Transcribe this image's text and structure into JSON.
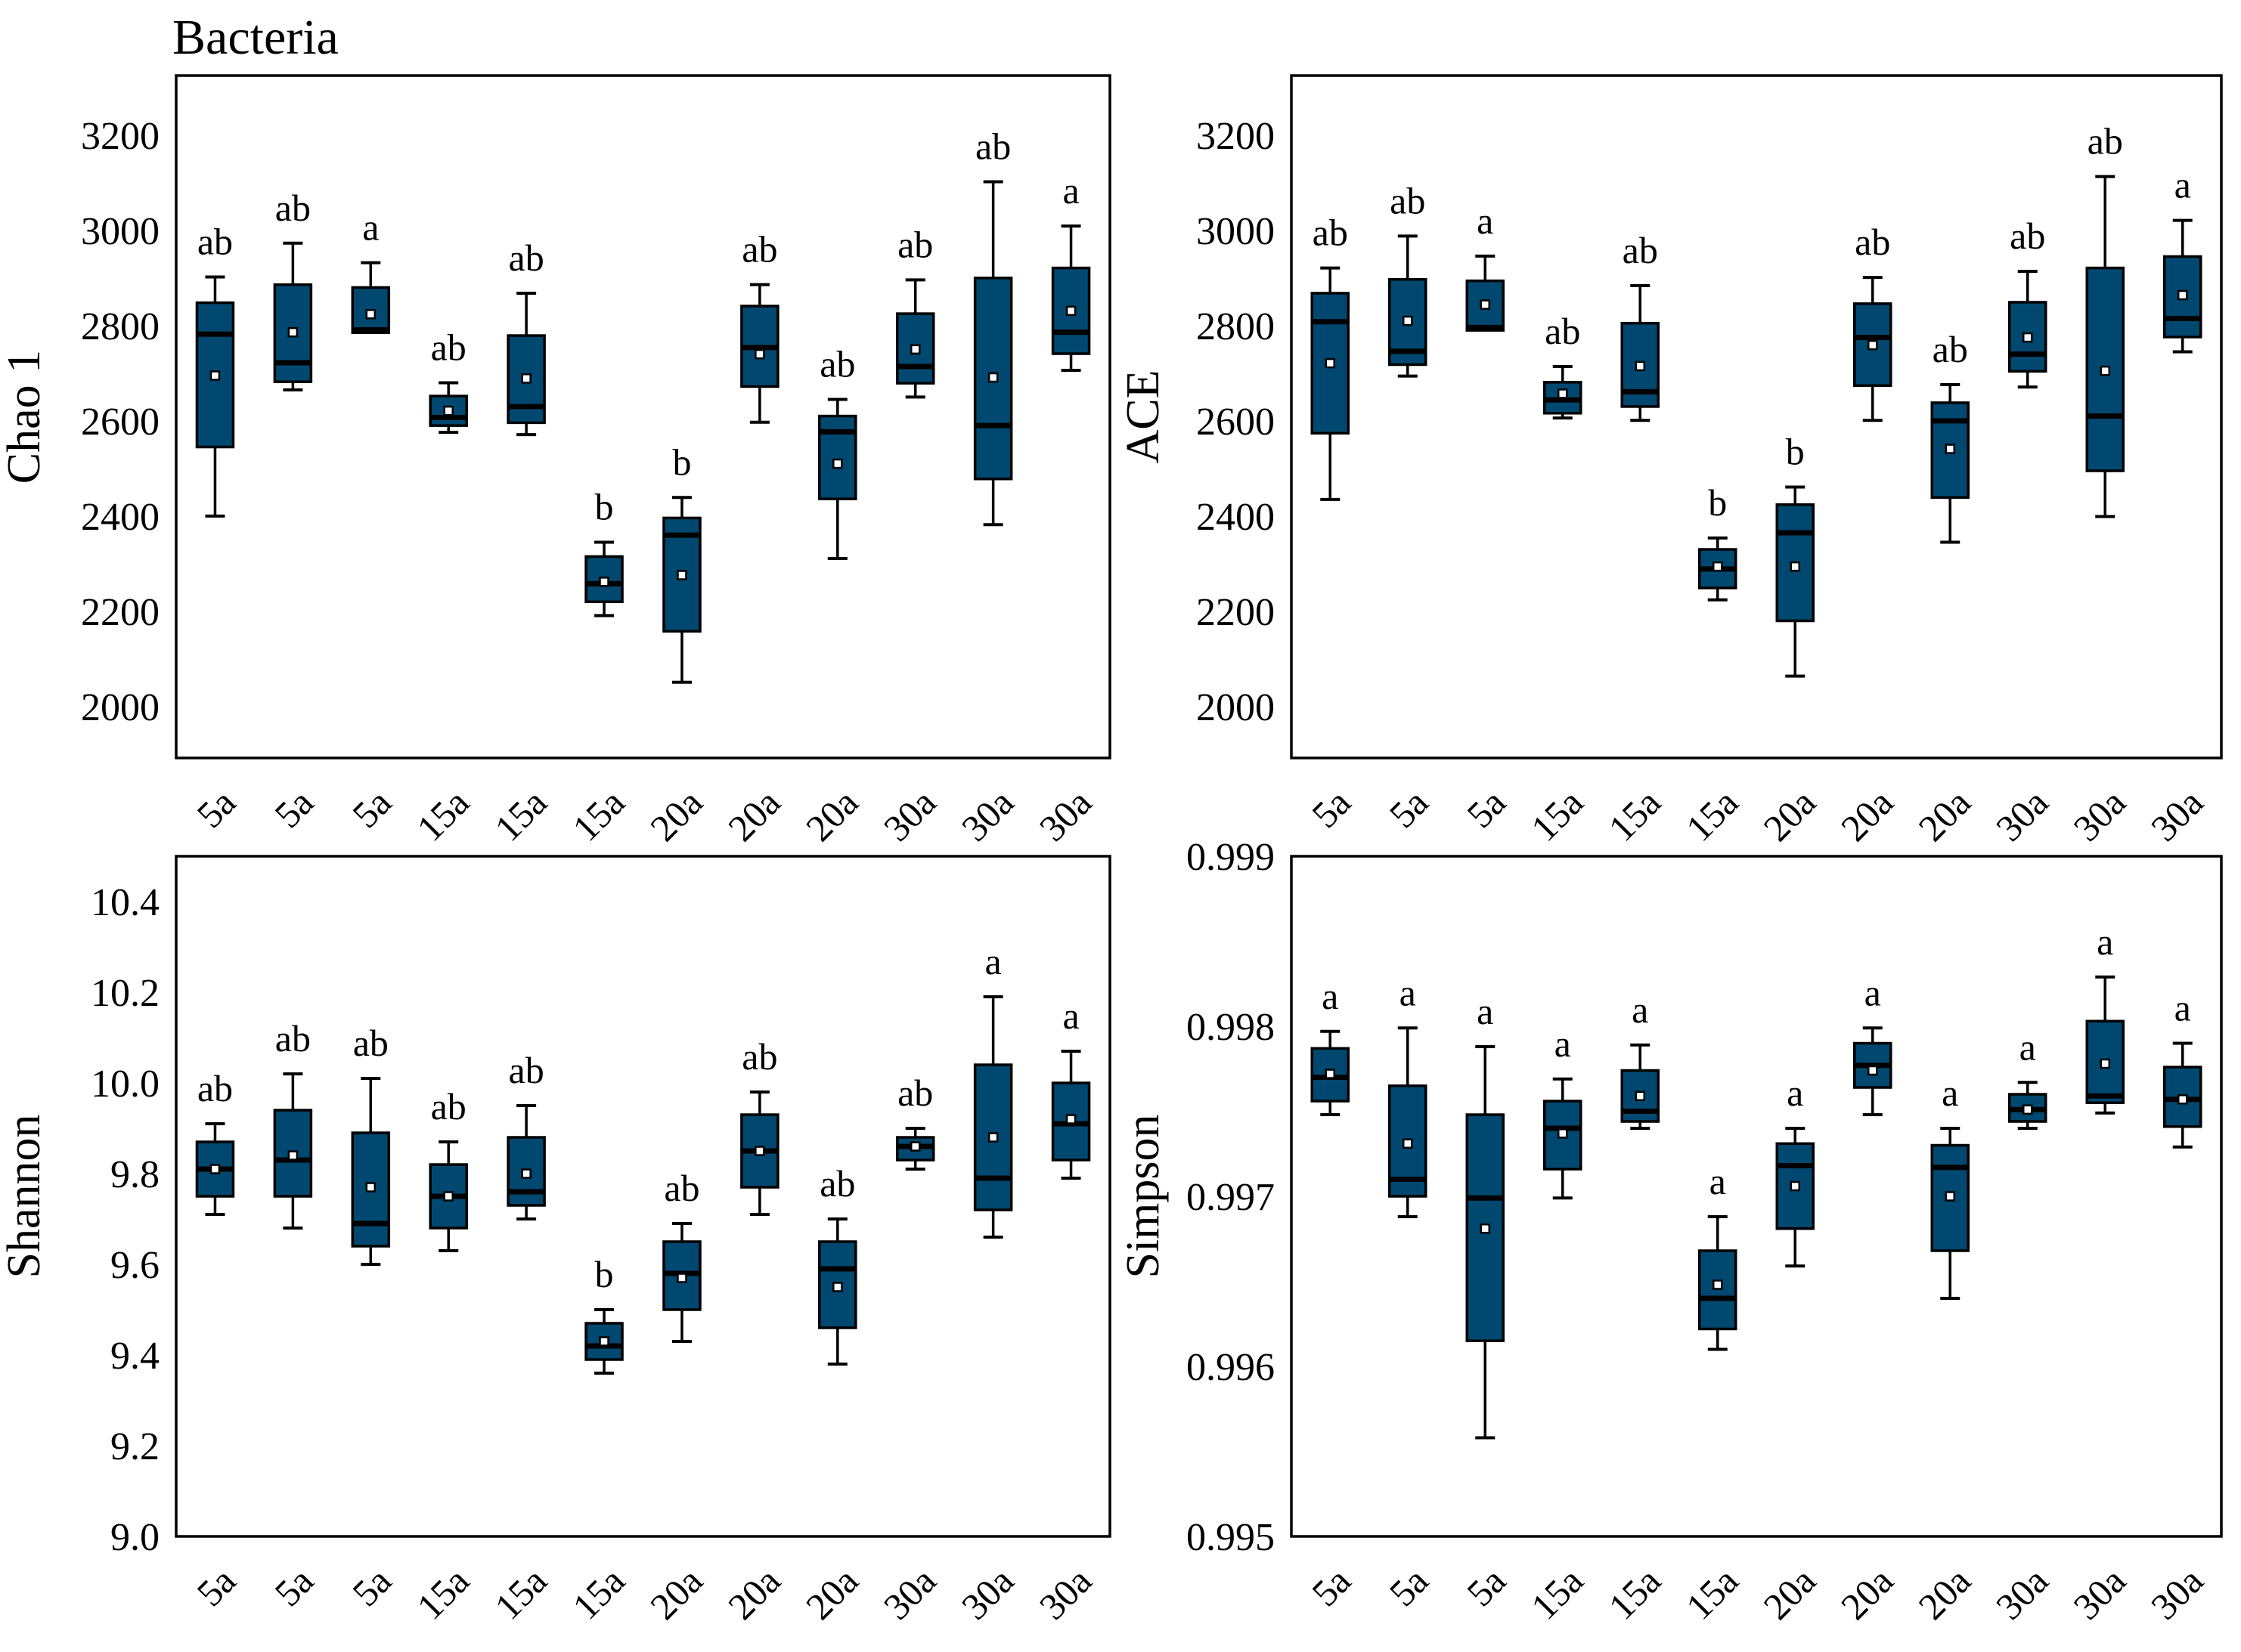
{
  "figure": {
    "title": "Bacteria",
    "box_fill": "#004870",
    "line_color": "#000000",
    "background": "#ffffff"
  },
  "categories": [
    "5a",
    "5a",
    "5a",
    "15a",
    "15a",
    "15a",
    "20a",
    "20a",
    "20a",
    "30a",
    "30a",
    "30a"
  ],
  "chart_data": [
    {
      "type": "box",
      "ylabel": "Chao 1",
      "ylim": [
        1892,
        3325
      ],
      "yticks": [
        {
          "v": 2000,
          "label": "2000"
        },
        {
          "v": 2200,
          "label": "2200"
        },
        {
          "v": 2400,
          "label": "2400"
        },
        {
          "v": 2600,
          "label": "2600"
        },
        {
          "v": 2800,
          "label": "2800"
        },
        {
          "v": 3000,
          "label": "3000"
        },
        {
          "v": 3200,
          "label": "3200"
        }
      ],
      "boxes": [
        {
          "category": "5a",
          "letter": "ab",
          "low": 2400,
          "q1": 2545,
          "median": 2782,
          "q3": 2848,
          "high": 2902,
          "mean": 2695
        },
        {
          "category": "5a",
          "letter": "ab",
          "low": 2665,
          "q1": 2682,
          "median": 2722,
          "q3": 2886,
          "high": 2973,
          "mean": 2786
        },
        {
          "category": "5a",
          "letter": "a",
          "low": 2785,
          "q1": 2785,
          "median": 2791,
          "q3": 2880,
          "high": 2932,
          "mean": 2824
        },
        {
          "category": "15a",
          "letter": "ab",
          "low": 2576,
          "q1": 2590,
          "median": 2607,
          "q3": 2652,
          "high": 2680,
          "mean": 2621
        },
        {
          "category": "15a",
          "letter": "ab",
          "low": 2571,
          "q1": 2596,
          "median": 2630,
          "q3": 2779,
          "high": 2868,
          "mean": 2689
        },
        {
          "category": "15a",
          "letter": "b",
          "low": 2191,
          "q1": 2220,
          "median": 2258,
          "q3": 2315,
          "high": 2345,
          "mean": 2262
        },
        {
          "category": "20a",
          "letter": "b",
          "low": 2051,
          "q1": 2158,
          "median": 2360,
          "q3": 2396,
          "high": 2439,
          "mean": 2276
        },
        {
          "category": "20a",
          "letter": "ab",
          "low": 2597,
          "q1": 2672,
          "median": 2754,
          "q3": 2841,
          "high": 2886,
          "mean": 2740
        },
        {
          "category": "20a",
          "letter": "ab",
          "low": 2311,
          "q1": 2436,
          "median": 2577,
          "q3": 2610,
          "high": 2645,
          "mean": 2510
        },
        {
          "category": "30a",
          "letter": "ab",
          "low": 2650,
          "q1": 2679,
          "median": 2714,
          "q3": 2825,
          "high": 2896,
          "mean": 2750
        },
        {
          "category": "30a",
          "letter": "ab",
          "low": 2382,
          "q1": 2478,
          "median": 2590,
          "q3": 2900,
          "high": 3102,
          "mean": 2691
        },
        {
          "category": "30a",
          "letter": "a",
          "low": 2706,
          "q1": 2741,
          "median": 2786,
          "q3": 2921,
          "high": 3009,
          "mean": 2831
        }
      ]
    },
    {
      "type": "box",
      "ylabel": "ACE",
      "ylim": [
        1892,
        3325
      ],
      "yticks": [
        {
          "v": 2000,
          "label": "2000"
        },
        {
          "v": 2200,
          "label": "2200"
        },
        {
          "v": 2400,
          "label": "2400"
        },
        {
          "v": 2600,
          "label": "2600"
        },
        {
          "v": 2800,
          "label": "2800"
        },
        {
          "v": 3000,
          "label": "3000"
        },
        {
          "v": 3200,
          "label": "3200"
        }
      ],
      "boxes": [
        {
          "category": "5a",
          "letter": "ab",
          "low": 2435,
          "q1": 2574,
          "median": 2808,
          "q3": 2868,
          "high": 2921,
          "mean": 2721
        },
        {
          "category": "5a",
          "letter": "ab",
          "low": 2694,
          "q1": 2718,
          "median": 2746,
          "q3": 2897,
          "high": 2988,
          "mean": 2810
        },
        {
          "category": "5a",
          "letter": "a",
          "low": 2790,
          "q1": 2790,
          "median": 2796,
          "q3": 2894,
          "high": 2946,
          "mean": 2844
        },
        {
          "category": "15a",
          "letter": "ab",
          "low": 2606,
          "q1": 2616,
          "median": 2644,
          "q3": 2681,
          "high": 2714,
          "mean": 2657
        },
        {
          "category": "15a",
          "letter": "ab",
          "low": 2601,
          "q1": 2630,
          "median": 2661,
          "q3": 2805,
          "high": 2884,
          "mean": 2715
        },
        {
          "category": "15a",
          "letter": "b",
          "low": 2224,
          "q1": 2249,
          "median": 2289,
          "q3": 2330,
          "high": 2354,
          "mean": 2294
        },
        {
          "category": "20a",
          "letter": "b",
          "low": 2064,
          "q1": 2180,
          "median": 2365,
          "q3": 2424,
          "high": 2461,
          "mean": 2294
        },
        {
          "category": "20a",
          "letter": "ab",
          "low": 2601,
          "q1": 2674,
          "median": 2775,
          "q3": 2846,
          "high": 2901,
          "mean": 2759
        },
        {
          "category": "20a",
          "letter": "ab",
          "low": 2345,
          "q1": 2439,
          "median": 2600,
          "q3": 2638,
          "high": 2676,
          "mean": 2541
        },
        {
          "category": "30a",
          "letter": "ab",
          "low": 2671,
          "q1": 2704,
          "median": 2740,
          "q3": 2849,
          "high": 2914,
          "mean": 2775
        },
        {
          "category": "30a",
          "letter": "ab",
          "low": 2399,
          "q1": 2495,
          "median": 2610,
          "q3": 2921,
          "high": 3113,
          "mean": 2705
        },
        {
          "category": "30a",
          "letter": "a",
          "low": 2745,
          "q1": 2776,
          "median": 2815,
          "q3": 2945,
          "high": 3021,
          "mean": 2864
        }
      ]
    },
    {
      "type": "box",
      "ylabel": "Shannon",
      "ylim": [
        9.0,
        10.5
      ],
      "yticks": [
        {
          "v": 9.0,
          "label": "9.0"
        },
        {
          "v": 9.2,
          "label": "9.2"
        },
        {
          "v": 9.4,
          "label": "9.4"
        },
        {
          "v": 9.6,
          "label": "9.6"
        },
        {
          "v": 9.8,
          "label": "9.8"
        },
        {
          "v": 10.0,
          "label": "10.0"
        },
        {
          "v": 10.2,
          "label": "10.2"
        },
        {
          "v": 10.4,
          "label": "10.4"
        }
      ],
      "boxes": [
        {
          "category": "5a",
          "letter": "ab",
          "low": 9.71,
          "q1": 9.75,
          "median": 9.81,
          "q3": 9.87,
          "high": 9.91,
          "mean": 9.81
        },
        {
          "category": "5a",
          "letter": "ab",
          "low": 9.68,
          "q1": 9.75,
          "median": 9.83,
          "q3": 9.94,
          "high": 10.02,
          "mean": 9.84
        },
        {
          "category": "5a",
          "letter": "ab",
          "low": 9.6,
          "q1": 9.64,
          "median": 9.69,
          "q3": 9.89,
          "high": 10.01,
          "mean": 9.77
        },
        {
          "category": "15a",
          "letter": "ab",
          "low": 9.63,
          "q1": 9.68,
          "median": 9.75,
          "q3": 9.82,
          "high": 9.87,
          "mean": 9.75
        },
        {
          "category": "15a",
          "letter": "ab",
          "low": 9.7,
          "q1": 9.73,
          "median": 9.76,
          "q3": 9.88,
          "high": 9.95,
          "mean": 9.8
        },
        {
          "category": "15a",
          "letter": "b",
          "low": 9.36,
          "q1": 9.39,
          "median": 9.42,
          "q3": 9.47,
          "high": 9.5,
          "mean": 9.43
        },
        {
          "category": "20a",
          "letter": "ab",
          "low": 9.43,
          "q1": 9.5,
          "median": 9.58,
          "q3": 9.65,
          "high": 9.69,
          "mean": 9.57
        },
        {
          "category": "20a",
          "letter": "ab",
          "low": 9.71,
          "q1": 9.77,
          "median": 9.85,
          "q3": 9.93,
          "high": 9.98,
          "mean": 9.85
        },
        {
          "category": "20a",
          "letter": "ab",
          "low": 9.38,
          "q1": 9.46,
          "median": 9.59,
          "q3": 9.65,
          "high": 9.7,
          "mean": 9.55
        },
        {
          "category": "30a",
          "letter": "ab",
          "low": 9.81,
          "q1": 9.83,
          "median": 9.86,
          "q3": 9.88,
          "high": 9.9,
          "mean": 9.86
        },
        {
          "category": "30a",
          "letter": "a",
          "low": 9.66,
          "q1": 9.72,
          "median": 9.79,
          "q3": 10.04,
          "high": 10.19,
          "mean": 9.88
        },
        {
          "category": "30a",
          "letter": "a",
          "low": 9.79,
          "q1": 9.83,
          "median": 9.91,
          "q3": 10.0,
          "high": 10.07,
          "mean": 9.92
        }
      ]
    },
    {
      "type": "box",
      "ylabel": "Simpson",
      "ylim": [
        0.995,
        0.999
      ],
      "yticks": [
        {
          "v": 0.995,
          "label": "0.995"
        },
        {
          "v": 0.996,
          "label": "0.996"
        },
        {
          "v": 0.997,
          "label": "0.997"
        },
        {
          "v": 0.998,
          "label": "0.998"
        },
        {
          "v": 0.999,
          "label": "0.999"
        }
      ],
      "boxes": [
        {
          "category": "5a",
          "letter": "a",
          "low": 0.99748,
          "q1": 0.99756,
          "median": 0.9977,
          "q3": 0.99787,
          "high": 0.99797,
          "mean": 0.99772
        },
        {
          "category": "5a",
          "letter": "a",
          "low": 0.99688,
          "q1": 0.997,
          "median": 0.9971,
          "q3": 0.99765,
          "high": 0.99799,
          "mean": 0.99731
        },
        {
          "category": "5a",
          "letter": "a",
          "low": 0.99558,
          "q1": 0.99615,
          "median": 0.99699,
          "q3": 0.99748,
          "high": 0.99788,
          "mean": 0.99681
        },
        {
          "category": "15a",
          "letter": "a",
          "low": 0.99699,
          "q1": 0.99716,
          "median": 0.9974,
          "q3": 0.99756,
          "high": 0.99769,
          "mean": 0.99737
        },
        {
          "category": "15a",
          "letter": "a",
          "low": 0.9974,
          "q1": 0.99744,
          "median": 0.9975,
          "q3": 0.99774,
          "high": 0.99789,
          "mean": 0.99759
        },
        {
          "category": "15a",
          "letter": "a",
          "low": 0.9961,
          "q1": 0.99622,
          "median": 0.9964,
          "q3": 0.99668,
          "high": 0.99688,
          "mean": 0.99648
        },
        {
          "category": "20a",
          "letter": "a",
          "low": 0.99659,
          "q1": 0.99681,
          "median": 0.99718,
          "q3": 0.99731,
          "high": 0.9974,
          "mean": 0.99706
        },
        {
          "category": "20a",
          "letter": "a",
          "low": 0.99748,
          "q1": 0.99764,
          "median": 0.99777,
          "q3": 0.9979,
          "high": 0.99799,
          "mean": 0.99774
        },
        {
          "category": "20a",
          "letter": "a",
          "low": 0.9964,
          "q1": 0.99668,
          "median": 0.99717,
          "q3": 0.9973,
          "high": 0.9974,
          "mean": 0.997
        },
        {
          "category": "30a",
          "letter": "a",
          "low": 0.9974,
          "q1": 0.99744,
          "median": 0.99751,
          "q3": 0.9976,
          "high": 0.99767,
          "mean": 0.99751
        },
        {
          "category": "30a",
          "letter": "a",
          "low": 0.99749,
          "q1": 0.99755,
          "median": 0.99759,
          "q3": 0.99803,
          "high": 0.99829,
          "mean": 0.99778
        },
        {
          "category": "30a",
          "letter": "a",
          "low": 0.99729,
          "q1": 0.99741,
          "median": 0.99757,
          "q3": 0.99776,
          "high": 0.9979,
          "mean": 0.99757
        }
      ]
    }
  ]
}
